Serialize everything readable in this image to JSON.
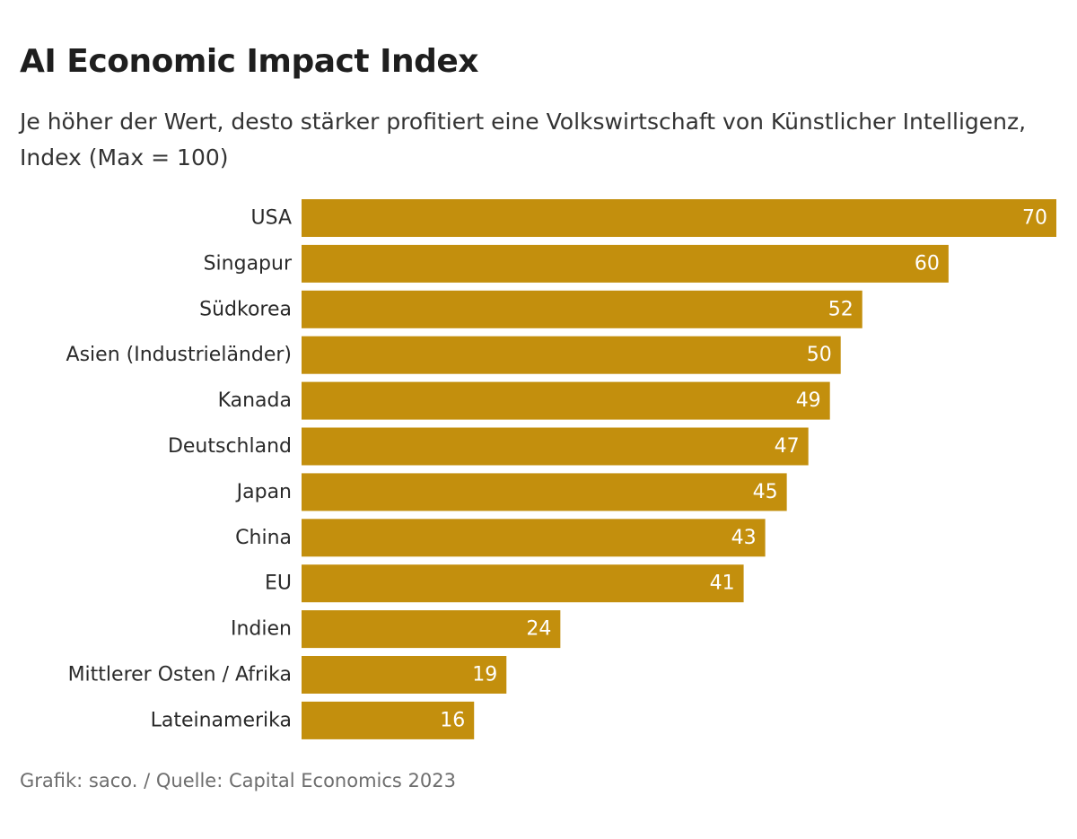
{
  "header": {
    "title": "AI Economic Impact Index",
    "subtitle": "Je höher der Wert, desto stärker profitiert eine Volkswirtschaft von Künstlicher Intelligenz, Index (Max = 100)"
  },
  "footer": {
    "source": "Grafik: saco. / Quelle: Capital Economics 2023"
  },
  "colors": {
    "bar": "#C38F0D",
    "bar_label": "#ffffff",
    "category_label": "#2a2a2a"
  },
  "chart_data": {
    "type": "bar",
    "orientation": "horizontal",
    "title": "AI Economic Impact Index",
    "subtitle": "Je höher der Wert, desto stärker profitiert eine Volkswirtschaft von Künstlicher Intelligenz, Index (Max = 100)",
    "categories": [
      "USA",
      "Singapur",
      "Südkorea",
      "Asien (Industrieländer)",
      "Kanada",
      "Deutschland",
      "Japan",
      "China",
      "EU",
      "Indien",
      "Mittlerer Osten / Afrika",
      "Lateinamerika"
    ],
    "values": [
      70,
      60,
      52,
      50,
      49,
      47,
      45,
      43,
      41,
      24,
      19,
      16
    ],
    "xlim": [
      0,
      70
    ],
    "xlabel": "",
    "ylabel": "",
    "grid": false,
    "legend": "none",
    "data_labels": "inside-end"
  }
}
